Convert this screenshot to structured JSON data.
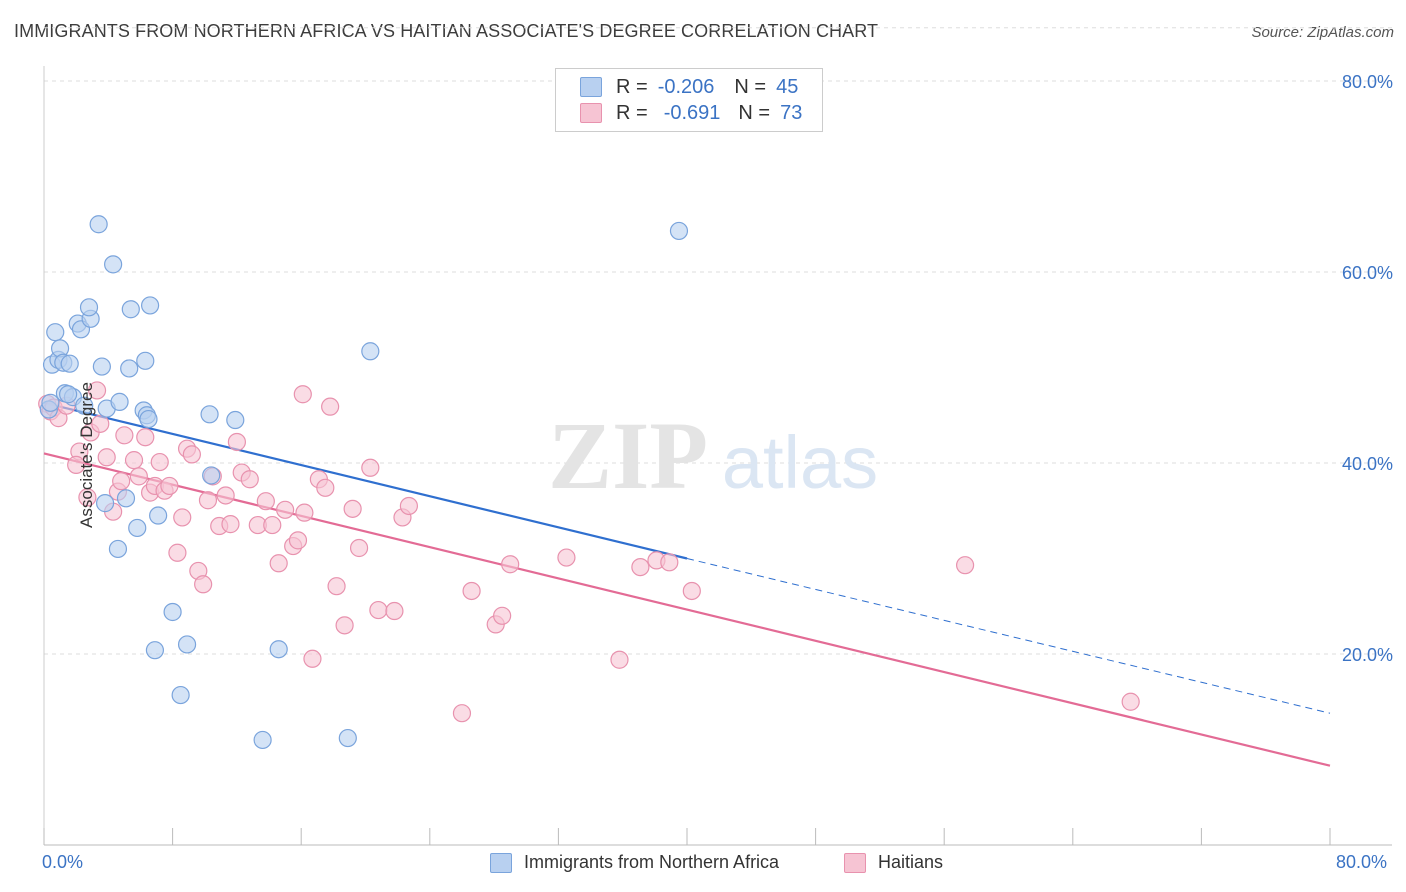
{
  "header": {
    "title": "IMMIGRANTS FROM NORTHERN AFRICA VS HAITIAN ASSOCIATE'S DEGREE CORRELATION CHART",
    "source": "Source: ZipAtlas.com"
  },
  "colors": {
    "blue_fill": "#b8d0f0",
    "blue_stroke": "#7aa4dc",
    "blue_line": "#2f6fcf",
    "pink_fill": "#f6c4d3",
    "pink_stroke": "#e892ae",
    "pink_line": "#e36b95",
    "axis_text": "#3b73c4",
    "watermark": "#e2e2e2"
  },
  "legend": {
    "blue": {
      "r_label": "R =",
      "r_value": "-0.206",
      "n_label": "N =",
      "n_value": "45"
    },
    "pink": {
      "r_label": "R =",
      "r_value": "-0.691",
      "n_label": "N =",
      "n_value": "73"
    }
  },
  "watermark": {
    "zip": "ZIP",
    "atlas": "atlas"
  },
  "x_axis": {
    "min_label": "0.0%",
    "max_label": "80.0%"
  },
  "chart_data": {
    "type": "scatter",
    "title": "IMMIGRANTS FROM NORTHERN AFRICA VS HAITIAN ASSOCIATE'S DEGREE CORRELATION CHART",
    "xlabel": "",
    "ylabel": "Associate's Degree",
    "xlim": [
      0,
      80
    ],
    "ylim": [
      0,
      86
    ],
    "y_ticks": [
      20,
      40,
      60,
      80
    ],
    "y_tick_labels": [
      "20.0%",
      "40.0%",
      "60.0%",
      "80.0%"
    ],
    "grid": true,
    "legend_position": "top-center",
    "series": [
      {
        "name": "Immigrants from Northern Africa",
        "color": "#b8d0f0",
        "r": -0.206,
        "n": 45,
        "trend": {
          "x0": 0,
          "y0": 46.3,
          "x1": 40,
          "y1": 30.0,
          "dashed_to_x": 80,
          "dashed_to_y": 13.8
        },
        "points": [
          [
            0.3,
            45.6
          ],
          [
            0.5,
            50.3
          ],
          [
            0.7,
            53.7
          ],
          [
            0.9,
            50.8
          ],
          [
            1.0,
            52.0
          ],
          [
            1.2,
            50.5
          ],
          [
            1.3,
            47.3
          ],
          [
            1.6,
            50.4
          ],
          [
            1.8,
            46.9
          ],
          [
            2.1,
            54.6
          ],
          [
            2.3,
            54.0
          ],
          [
            2.9,
            55.1
          ],
          [
            2.8,
            56.3
          ],
          [
            3.4,
            65.0
          ],
          [
            2.5,
            46.0
          ],
          [
            3.6,
            50.1
          ],
          [
            3.8,
            35.8
          ],
          [
            3.9,
            45.7
          ],
          [
            4.3,
            60.8
          ],
          [
            4.7,
            46.4
          ],
          [
            5.1,
            36.3
          ],
          [
            5.3,
            49.9
          ],
          [
            5.4,
            56.1
          ],
          [
            5.8,
            33.2
          ],
          [
            6.2,
            45.5
          ],
          [
            6.4,
            45.0
          ],
          [
            6.3,
            50.7
          ],
          [
            6.5,
            44.6
          ],
          [
            6.6,
            56.5
          ],
          [
            7.1,
            34.5
          ],
          [
            4.6,
            31.0
          ],
          [
            8.0,
            24.4
          ],
          [
            6.9,
            20.4
          ],
          [
            8.9,
            21.0
          ],
          [
            8.5,
            15.7
          ],
          [
            10.3,
            45.1
          ],
          [
            10.4,
            38.7
          ],
          [
            11.9,
            44.5
          ],
          [
            13.6,
            11.0
          ],
          [
            14.6,
            20.5
          ],
          [
            18.9,
            11.2
          ],
          [
            20.3,
            51.7
          ],
          [
            39.5,
            64.3
          ],
          [
            0.4,
            46.3
          ],
          [
            1.5,
            47.2
          ]
        ]
      },
      {
        "name": "Haitians",
        "color": "#f6c4d3",
        "r": -0.691,
        "n": 73,
        "trend": {
          "x0": 0,
          "y0": 41.0,
          "x1": 80,
          "y1": 8.3
        },
        "points": [
          [
            0.2,
            46.2
          ],
          [
            0.4,
            45.4
          ],
          [
            0.6,
            45.8
          ],
          [
            0.9,
            44.7
          ],
          [
            1.4,
            46.0
          ],
          [
            2.2,
            41.2
          ],
          [
            2.0,
            39.8
          ],
          [
            2.7,
            36.4
          ],
          [
            2.9,
            43.2
          ],
          [
            3.3,
            47.6
          ],
          [
            3.5,
            44.1
          ],
          [
            3.9,
            40.6
          ],
          [
            4.3,
            34.9
          ],
          [
            4.6,
            37.0
          ],
          [
            4.8,
            38.1
          ],
          [
            5.0,
            42.9
          ],
          [
            5.6,
            40.3
          ],
          [
            5.9,
            38.6
          ],
          [
            6.3,
            42.7
          ],
          [
            6.6,
            36.9
          ],
          [
            6.9,
            37.6
          ],
          [
            7.2,
            40.1
          ],
          [
            7.5,
            37.1
          ],
          [
            7.8,
            37.6
          ],
          [
            8.3,
            30.6
          ],
          [
            8.6,
            34.3
          ],
          [
            8.9,
            41.5
          ],
          [
            9.2,
            40.9
          ],
          [
            9.6,
            28.7
          ],
          [
            9.9,
            27.3
          ],
          [
            10.2,
            36.1
          ],
          [
            10.5,
            38.6
          ],
          [
            10.9,
            33.4
          ],
          [
            11.3,
            36.6
          ],
          [
            11.6,
            33.6
          ],
          [
            12.0,
            42.2
          ],
          [
            12.3,
            39.0
          ],
          [
            12.8,
            38.3
          ],
          [
            13.3,
            33.5
          ],
          [
            13.8,
            36.0
          ],
          [
            14.2,
            33.5
          ],
          [
            14.6,
            29.5
          ],
          [
            15.0,
            35.1
          ],
          [
            15.5,
            31.3
          ],
          [
            15.8,
            31.9
          ],
          [
            16.2,
            34.8
          ],
          [
            16.1,
            47.2
          ],
          [
            16.7,
            19.5
          ],
          [
            17.1,
            38.3
          ],
          [
            17.5,
            37.4
          ],
          [
            17.8,
            45.9
          ],
          [
            18.2,
            27.1
          ],
          [
            18.7,
            23.0
          ],
          [
            19.2,
            35.2
          ],
          [
            19.6,
            31.1
          ],
          [
            20.3,
            39.5
          ],
          [
            20.8,
            24.6
          ],
          [
            21.8,
            24.5
          ],
          [
            22.3,
            34.3
          ],
          [
            22.7,
            35.5
          ],
          [
            26.0,
            13.8
          ],
          [
            26.6,
            26.6
          ],
          [
            28.1,
            23.1
          ],
          [
            28.5,
            24.0
          ],
          [
            29.0,
            29.4
          ],
          [
            32.5,
            30.1
          ],
          [
            35.8,
            19.4
          ],
          [
            37.1,
            29.1
          ],
          [
            38.1,
            29.8
          ],
          [
            38.9,
            29.6
          ],
          [
            40.3,
            26.6
          ],
          [
            57.3,
            29.3
          ],
          [
            67.6,
            15.0
          ]
        ]
      }
    ]
  }
}
